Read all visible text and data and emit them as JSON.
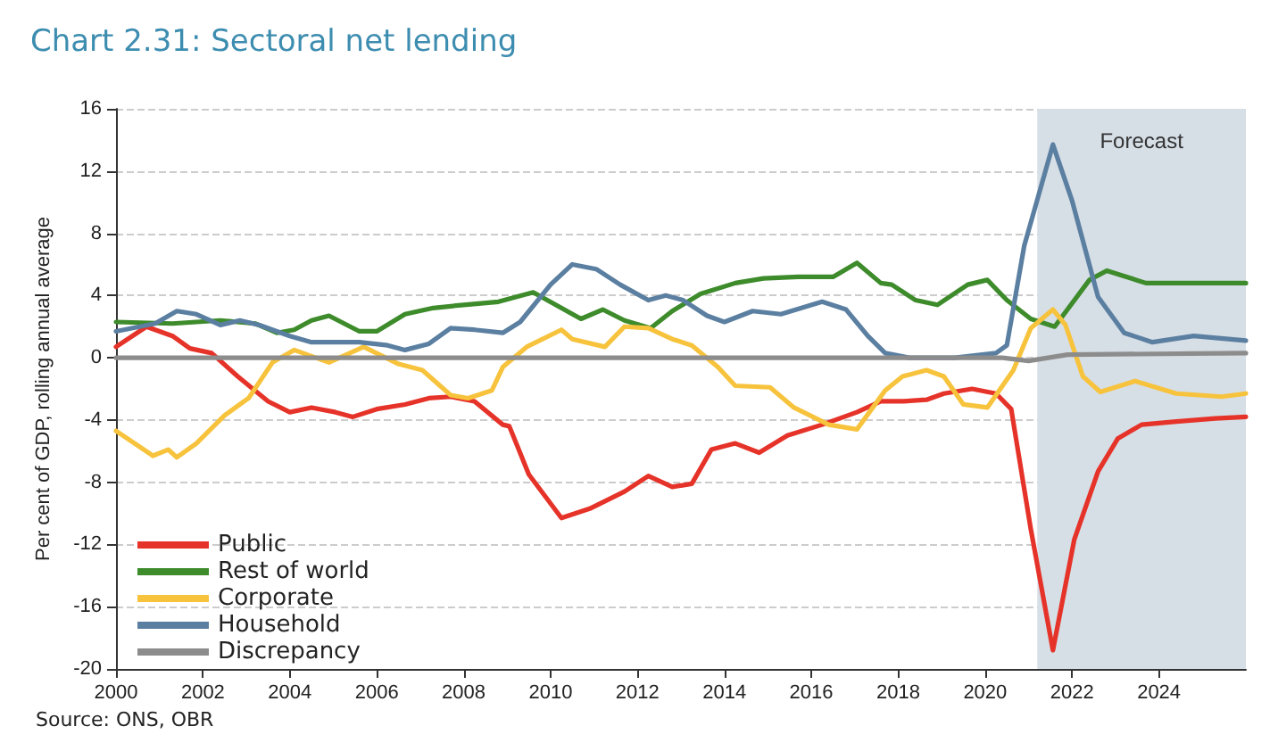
{
  "chart_data": {
    "type": "line",
    "title": "Chart 2.31: Sectoral net lending",
    "ylabel": "Per cent of GDP, rolling annual average",
    "annotations": [
      "Source: ONS, OBR"
    ],
    "xlim": [
      2000,
      2026
    ],
    "xticks": [
      2000,
      2002,
      2004,
      2006,
      2008,
      2010,
      2012,
      2014,
      2016,
      2018,
      2020,
      2022,
      2024
    ],
    "ylim": [
      -20,
      16
    ],
    "yticks": [
      -20,
      -16,
      -12,
      -8,
      -4,
      0,
      4,
      8,
      12,
      16
    ],
    "grid": "y",
    "legend": "bottom left",
    "bands": [
      {
        "axis": "x",
        "from": 2021.2,
        "to": 2026,
        "label": "Forecast",
        "color": "#d6dee6"
      }
    ],
    "series": [
      {
        "name": "Public",
        "color": "#e63329",
        "x": [
          2000,
          2000.7,
          2001.3,
          2001.7,
          2002.2,
          2002.8,
          2003.5,
          2004,
          2004.5,
          2005.05,
          2005.45,
          2006,
          2006.65,
          2007.2,
          2007.7,
          2008.25,
          2008.9,
          2009.05,
          2009.5,
          2010.25,
          2010.9,
          2011.7,
          2012.25,
          2012.8,
          2013.25,
          2013.7,
          2014.25,
          2014.8,
          2015.45,
          2016.25,
          2017.05,
          2017.6,
          2018.1,
          2018.65,
          2019.05,
          2019.7,
          2020.25,
          2020.6,
          2021.05,
          2021.56,
          2022.05,
          2022.6,
          2023.05,
          2023.6,
          2024.4,
          2025.3,
          2026
        ],
        "values": [
          0.7,
          2.0,
          1.4,
          0.6,
          0.3,
          -1.2,
          -2.8,
          -3.5,
          -3.2,
          -3.5,
          -3.8,
          -3.3,
          -3.0,
          -2.6,
          -2.5,
          -2.8,
          -4.3,
          -4.4,
          -7.5,
          -10.3,
          -9.7,
          -8.6,
          -7.6,
          -8.3,
          -8.1,
          -5.9,
          -5.5,
          -6.1,
          -5.0,
          -4.3,
          -3.5,
          -2.8,
          -2.8,
          -2.7,
          -2.3,
          -2.0,
          -2.3,
          -3.3,
          -11.0,
          -18.8,
          -11.7,
          -7.3,
          -5.2,
          -4.3,
          -4.1,
          -3.9,
          -3.8
        ]
      },
      {
        "name": "Rest of world",
        "color": "#3d8b2b",
        "x": [
          2000,
          2001.3,
          2002.4,
          2003.2,
          2003.7,
          2004.1,
          2004.5,
          2004.9,
          2005.6,
          2006,
          2006.65,
          2007.3,
          2008,
          2008.8,
          2009.6,
          2010.7,
          2011.2,
          2011.7,
          2012.3,
          2012.8,
          2013.45,
          2014.25,
          2014.9,
          2015.7,
          2016.5,
          2017.05,
          2017.6,
          2017.85,
          2018.4,
          2018.9,
          2019.6,
          2020.05,
          2020.5,
          2021.05,
          2021.6,
          2022.4,
          2022.8,
          2023.7,
          2024.8,
          2026
        ],
        "values": [
          2.3,
          2.2,
          2.4,
          2.2,
          1.6,
          1.8,
          2.4,
          2.7,
          1.7,
          1.7,
          2.8,
          3.2,
          3.4,
          3.6,
          4.2,
          2.5,
          3.1,
          2.4,
          1.9,
          3.0,
          4.1,
          4.8,
          5.1,
          5.2,
          5.2,
          6.1,
          4.8,
          4.7,
          3.7,
          3.4,
          4.7,
          5.0,
          3.7,
          2.5,
          2.0,
          5.0,
          5.6,
          4.8,
          4.8,
          4.8
        ]
      },
      {
        "name": "Corporate",
        "color": "#f7c33d",
        "x": [
          2000,
          2000.85,
          2001.2,
          2001.4,
          2001.85,
          2002.5,
          2003.05,
          2003.6,
          2004.1,
          2004.9,
          2005.7,
          2006.5,
          2007.05,
          2007.7,
          2008.1,
          2008.65,
          2008.9,
          2009.45,
          2010.25,
          2010.5,
          2011.25,
          2011.7,
          2012.25,
          2012.8,
          2013.25,
          2013.85,
          2014.25,
          2015.05,
          2015.6,
          2016.4,
          2017.05,
          2017.7,
          2018.1,
          2018.65,
          2019.05,
          2019.5,
          2020.05,
          2020.65,
          2021.05,
          2021.56,
          2021.85,
          2022.25,
          2022.65,
          2023.45,
          2024.4,
          2025.45,
          2026
        ],
        "values": [
          -4.7,
          -6.3,
          -5.9,
          -6.4,
          -5.5,
          -3.7,
          -2.6,
          -0.3,
          0.5,
          -0.3,
          0.7,
          -0.4,
          -0.8,
          -2.4,
          -2.6,
          -2.1,
          -0.6,
          0.7,
          1.8,
          1.2,
          0.7,
          2.0,
          1.9,
          1.2,
          0.8,
          -0.6,
          -1.8,
          -1.9,
          -3.2,
          -4.3,
          -4.6,
          -2.1,
          -1.2,
          -0.8,
          -1.2,
          -3.0,
          -3.2,
          -0.8,
          1.9,
          3.1,
          2.1,
          -1.2,
          -2.2,
          -1.5,
          -2.3,
          -2.5,
          -2.3
        ]
      },
      {
        "name": "Household",
        "color": "#5b7fa1",
        "x": [
          2000,
          2000.9,
          2001.4,
          2001.85,
          2002.4,
          2002.85,
          2003.3,
          2004,
          2004.5,
          2005.6,
          2006.25,
          2006.65,
          2007.2,
          2007.7,
          2008.25,
          2008.9,
          2009.3,
          2010,
          2010.5,
          2011.05,
          2011.6,
          2012.25,
          2012.65,
          2013.05,
          2013.6,
          2014,
          2014.65,
          2015.3,
          2016.25,
          2016.8,
          2017.3,
          2017.7,
          2018.25,
          2019.3,
          2020.25,
          2020.5,
          2020.9,
          2021.56,
          2022,
          2022.6,
          2023.2,
          2023.85,
          2024.8,
          2026
        ],
        "values": [
          1.7,
          2.2,
          3.0,
          2.8,
          2.1,
          2.4,
          2.1,
          1.4,
          1.0,
          1.0,
          0.8,
          0.5,
          0.9,
          1.9,
          1.8,
          1.6,
          2.3,
          4.7,
          6.0,
          5.7,
          4.7,
          3.7,
          4.0,
          3.7,
          2.7,
          2.3,
          3.0,
          2.8,
          3.6,
          3.1,
          1.4,
          0.3,
          0,
          0,
          0.3,
          0.8,
          7.2,
          13.7,
          10.1,
          3.9,
          1.6,
          1.0,
          1.4,
          1.1
        ]
      },
      {
        "name": "Discrepancy",
        "color": "#8c8c8c",
        "x": [
          2000,
          2020.4,
          2021.0,
          2021.9,
          2026
        ],
        "values": [
          0,
          0,
          -0.2,
          0.2,
          0.3
        ]
      }
    ]
  }
}
